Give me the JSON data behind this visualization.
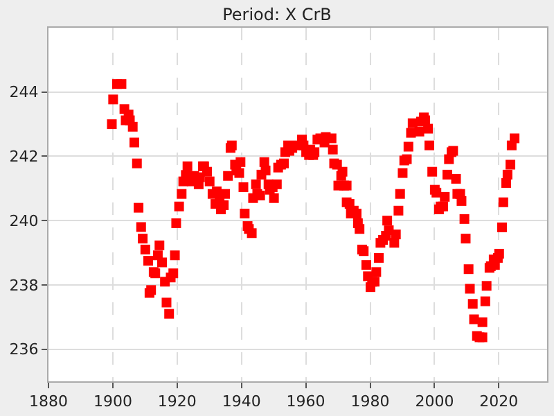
{
  "chart_data": {
    "type": "scatter",
    "title": "Period: X CrB",
    "x": [
      1899.7,
      1900.1,
      1901.3,
      1902.7,
      1903.6,
      1904.0,
      1904.9,
      1905.3,
      1906.2,
      1906.7,
      1907.5,
      1908.0,
      1908.8,
      1909.3,
      1910.1,
      1911.0,
      1911.4,
      1911.9,
      1912.7,
      1913.2,
      1914.0,
      1914.5,
      1915.3,
      1916.2,
      1916.7,
      1917.5,
      1918.0,
      1918.8,
      1919.3,
      1919.7,
      1920.6,
      1921.4,
      1921.9,
      1922.7,
      1923.2,
      1924.5,
      1925.3,
      1926.7,
      1927.1,
      1928.0,
      1928.4,
      1929.3,
      1930.1,
      1931.0,
      1931.9,
      1932.3,
      1933.2,
      1933.6,
      1934.5,
      1934.9,
      1935.8,
      1936.6,
      1937.0,
      1938.0,
      1938.4,
      1939.3,
      1939.7,
      1940.6,
      1941.0,
      1941.9,
      1942.3,
      1943.2,
      1943.6,
      1944.5,
      1944.9,
      1945.8,
      1946.2,
      1947.1,
      1947.5,
      1948.4,
      1948.8,
      1949.7,
      1950.1,
      1951.0,
      1951.4,
      1952.3,
      1953.2,
      1953.6,
      1954.5,
      1954.9,
      1955.8,
      1957.5,
      1958.8,
      1959.3,
      1960.1,
      1961.0,
      1961.4,
      1962.3,
      1962.7,
      1963.6,
      1964.5,
      1965.8,
      1966.2,
      1968.0,
      1968.4,
      1968.8,
      1969.7,
      1970.1,
      1971.0,
      1971.4,
      1971.9,
      1972.7,
      1972.7,
      1973.6,
      1974.0,
      1974.9,
      1975.8,
      1976.2,
      1976.7,
      1977.5,
      1978.0,
      1978.8,
      1979.3,
      1980.1,
      1980.6,
      1981.4,
      1981.9,
      1982.7,
      1983.2,
      1984.0,
      1984.9,
      1985.3,
      1985.8,
      1987.5,
      1988.0,
      1988.8,
      1989.3,
      1990.1,
      1990.6,
      1991.4,
      1991.9,
      1992.7,
      1993.2,
      1995.3,
      1995.8,
      1996.7,
      1997.1,
      1998.0,
      1998.4,
      1999.3,
      2000.1,
      2000.6,
      2001.4,
      2001.9,
      2002.7,
      2003.2,
      2004.0,
      2004.5,
      2005.3,
      2005.8,
      2006.7,
      2007.1,
      2008.0,
      2008.4,
      2009.3,
      2009.7,
      2010.6,
      2011.0,
      2011.9,
      2012.3,
      2013.2,
      2014.0,
      2014.9,
      2014.9,
      2015.8,
      2016.2,
      2017.1,
      2017.5,
      2018.4,
      2018.8,
      2019.7,
      2020.1,
      2021.0,
      2021.4,
      2022.3,
      2022.7,
      2023.6,
      2024.0,
      2024.9
    ],
    "values": [
      243.0,
      243.77,
      244.25,
      244.25,
      243.47,
      243.12,
      243.3,
      243.12,
      242.92,
      242.43,
      241.78,
      240.4,
      239.8,
      239.44,
      239.1,
      238.75,
      237.75,
      237.84,
      238.4,
      238.36,
      238.92,
      239.23,
      238.7,
      238.1,
      237.45,
      237.1,
      238.23,
      238.36,
      238.92,
      239.92,
      240.44,
      240.83,
      241.22,
      241.42,
      241.69,
      241.22,
      241.39,
      241.13,
      241.35,
      241.69,
      241.69,
      241.52,
      241.22,
      240.83,
      240.52,
      240.91,
      240.61,
      240.35,
      240.48,
      240.83,
      241.39,
      242.26,
      242.34,
      241.74,
      241.56,
      241.48,
      241.82,
      241.04,
      240.22,
      239.83,
      239.74,
      239.61,
      240.7,
      241.13,
      240.83,
      240.78,
      241.43,
      241.82,
      241.56,
      241.13,
      240.96,
      241.04,
      240.7,
      241.13,
      241.65,
      241.74,
      241.78,
      242.13,
      242.34,
      242.17,
      242.26,
      242.34,
      242.52,
      242.34,
      242.13,
      242.04,
      242.21,
      242.04,
      242.13,
      242.52,
      242.56,
      242.43,
      242.6,
      242.56,
      242.21,
      241.78,
      241.74,
      241.09,
      241.39,
      241.52,
      241.09,
      241.09,
      240.57,
      240.52,
      240.22,
      240.31,
      240.22,
      239.92,
      239.74,
      239.1,
      239.05,
      238.62,
      238.27,
      237.93,
      238.1,
      238.1,
      238.4,
      238.84,
      239.31,
      239.4,
      239.53,
      240.0,
      239.7,
      239.31,
      239.57,
      240.31,
      240.83,
      241.48,
      241.87,
      241.91,
      242.3,
      242.73,
      243.03,
      242.77,
      243.08,
      243.21,
      243.12,
      242.86,
      242.34,
      241.52,
      240.96,
      240.87,
      240.35,
      240.44,
      240.44,
      240.74,
      241.43,
      241.91,
      242.13,
      242.17,
      241.3,
      240.83,
      240.83,
      240.61,
      240.05,
      239.44,
      238.49,
      237.88,
      237.41,
      236.93,
      236.41,
      236.37,
      236.37,
      236.84,
      237.49,
      237.97,
      238.53,
      238.58,
      238.79,
      238.62,
      238.84,
      238.97,
      239.79,
      240.57,
      241.17,
      241.43,
      241.74,
      242.34,
      242.56
    ],
    "color": "#ff0000",
    "marker": "square",
    "xlim": [
      1880,
      2035
    ],
    "xticks": [
      1880,
      1900,
      1920,
      1940,
      1960,
      1980,
      2000,
      2020
    ],
    "ylim": [
      235,
      246
    ],
    "yticks": [
      236,
      238,
      240,
      242,
      244
    ],
    "grid": true
  }
}
